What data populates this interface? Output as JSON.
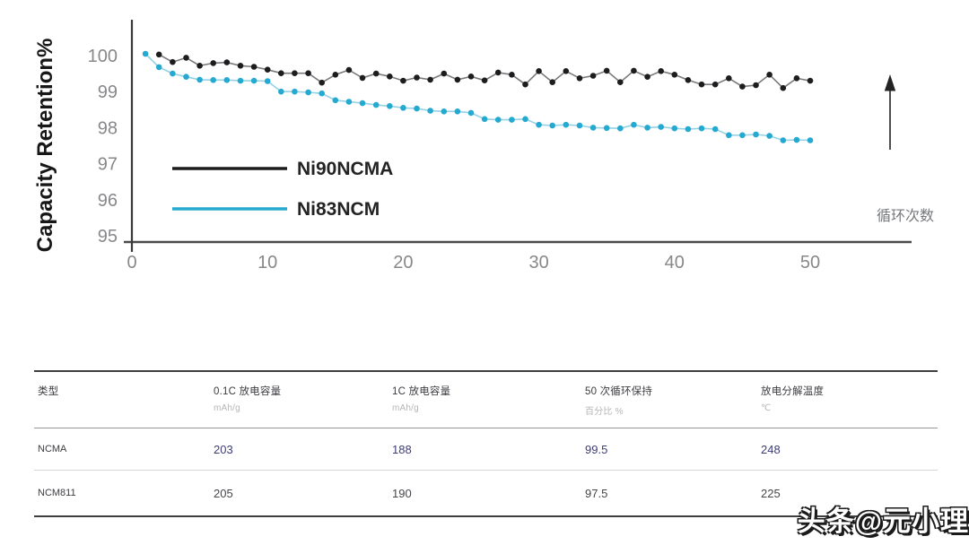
{
  "chart_data": {
    "type": "line",
    "title": "",
    "xlabel": "循环次数",
    "ylabel": "Capacity Retention%",
    "xlim": [
      0,
      57
    ],
    "ylim": [
      95,
      100.5
    ],
    "x_ticks": [
      0,
      10,
      20,
      30,
      40,
      50
    ],
    "y_ticks": [
      100,
      99,
      98,
      97,
      96,
      95
    ],
    "grid": "off",
    "legend_position": "inside-left-middle",
    "axis_color": "#4a4a4d",
    "tick_label_color": "#88888b",
    "annotations": [
      "up-arrow at right side"
    ],
    "series": [
      {
        "name": "Ni90NCMA",
        "color": "#1d1d1f",
        "line_color": "#7a7a7d",
        "x": [
          2,
          3,
          4,
          5,
          6,
          7,
          8,
          9,
          10,
          11,
          12,
          13,
          14,
          15,
          16,
          17,
          18,
          19,
          20,
          21,
          22,
          23,
          24,
          25,
          26,
          27,
          28,
          29,
          30,
          31,
          32,
          33,
          34,
          35,
          36,
          37,
          38,
          39,
          40,
          41,
          42,
          43,
          44,
          45,
          46,
          47,
          48,
          49,
          50
        ],
        "values": [
          100.03,
          99.82,
          99.94,
          99.72,
          99.79,
          99.81,
          99.72,
          99.69,
          99.61,
          99.51,
          99.51,
          99.51,
          99.25,
          99.47,
          99.6,
          99.38,
          99.5,
          99.42,
          99.3,
          99.39,
          99.33,
          99.5,
          99.33,
          99.42,
          99.31,
          99.53,
          99.47,
          99.2,
          99.57,
          99.26,
          99.57,
          99.37,
          99.44,
          99.58,
          99.26,
          99.58,
          99.41,
          99.57,
          99.47,
          99.32,
          99.2,
          99.2,
          99.37,
          99.14,
          99.18,
          99.47,
          99.1,
          99.37,
          99.3
        ]
      },
      {
        "name": "Ni83NCM",
        "color": "#25a9d1",
        "line_color": "#93d2e6",
        "x": [
          1,
          2,
          3,
          4,
          5,
          6,
          7,
          8,
          9,
          10,
          11,
          12,
          13,
          14,
          15,
          16,
          17,
          18,
          19,
          20,
          21,
          22,
          23,
          24,
          25,
          26,
          27,
          28,
          29,
          30,
          31,
          32,
          33,
          34,
          35,
          36,
          37,
          38,
          39,
          40,
          41,
          42,
          43,
          44,
          45,
          46,
          47,
          48,
          49,
          50
        ],
        "values": [
          100.05,
          99.68,
          99.5,
          99.41,
          99.33,
          99.32,
          99.32,
          99.3,
          99.3,
          99.29,
          99.0,
          99.0,
          98.98,
          98.95,
          98.76,
          98.72,
          98.68,
          98.63,
          98.6,
          98.55,
          98.53,
          98.47,
          98.45,
          98.45,
          98.41,
          98.24,
          98.22,
          98.22,
          98.24,
          98.08,
          98.06,
          98.08,
          98.06,
          98.0,
          97.99,
          97.98,
          98.08,
          98.0,
          98.02,
          97.98,
          97.96,
          97.98,
          97.96,
          97.79,
          97.79,
          97.81,
          97.77,
          97.65,
          97.66,
          97.65
        ]
      }
    ]
  },
  "table": {
    "headers": [
      {
        "label": "类型",
        "unit": ""
      },
      {
        "label": "0.1C 放电容量",
        "unit": "mAh/g"
      },
      {
        "label": "1C 放电容量",
        "unit": "mAh/g"
      },
      {
        "label": "50 次循环保持",
        "unit": "百分比 %"
      },
      {
        "label": "放电分解温度",
        "unit": "℃"
      }
    ],
    "rows": [
      {
        "cells": [
          "NCMA",
          "203",
          "188",
          "99.5",
          "248"
        ],
        "highlight": true
      },
      {
        "cells": [
          "NCM811",
          "205",
          "190",
          "97.5",
          "225"
        ],
        "highlight": false
      }
    ],
    "value_highlight_color": "#3d3c78",
    "value_normal_color": "#46464b"
  },
  "watermark": "头条@元小理"
}
